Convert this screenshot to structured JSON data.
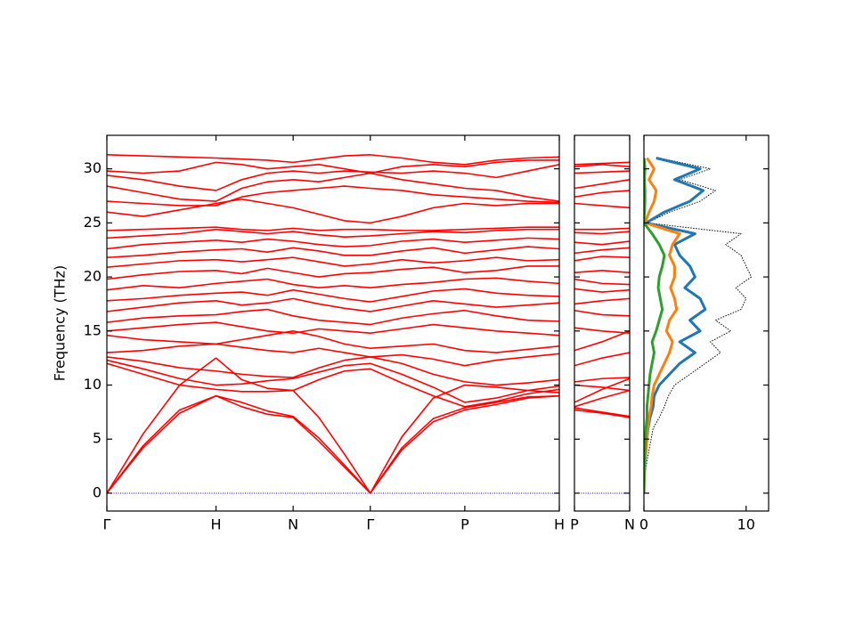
{
  "chart_data": [
    {
      "type": "line",
      "ylabel": "Frequency (THz)",
      "color": "#ff0000",
      "ytick_labels": true,
      "xlim": [
        0,
        4.146
      ],
      "ylim": [
        -1.65,
        33.1
      ],
      "xticks": [
        {
          "value": 0,
          "label": "Γ"
        },
        {
          "value": 1,
          "label": "H"
        },
        {
          "value": 1.707,
          "label": "N"
        },
        {
          "value": 2.414,
          "label": "Γ"
        },
        {
          "value": 3.28,
          "label": "P"
        },
        {
          "value": 4.146,
          "label": "H"
        }
      ],
      "yticks": [
        0,
        5,
        10,
        15,
        20,
        25,
        30
      ],
      "hline": {
        "value": 0,
        "color": "#0000ff"
      },
      "x": [
        0,
        0.333,
        0.667,
        1,
        1.236,
        1.471,
        1.707,
        1.943,
        2.178,
        2.414,
        2.703,
        2.991,
        3.28,
        3.569,
        3.857,
        4.146
      ],
      "series": [
        {
          "values": [
            0,
            4.2,
            7.4,
            9.0,
            8.0,
            7.3,
            7.0,
            4.8,
            2.4,
            0,
            4.0,
            6.6,
            7.7,
            8.2,
            8.8,
            9.0
          ]
        },
        {
          "values": [
            0,
            4.4,
            7.7,
            9.0,
            8.4,
            7.6,
            7.1,
            5.1,
            2.6,
            0,
            4.2,
            6.9,
            7.9,
            8.4,
            8.9,
            9.0
          ]
        },
        {
          "values": [
            0,
            5.5,
            10.0,
            12.5,
            10.5,
            9.7,
            9.5,
            7.0,
            3.6,
            0,
            5.2,
            8.8,
            10.0,
            9.8,
            9.5,
            9.3
          ]
        },
        {
          "values": [
            12.0,
            11.0,
            10.0,
            9.6,
            9.4,
            9.4,
            9.5,
            10.5,
            11.3,
            11.5,
            10.2,
            9.0,
            8.0,
            8.5,
            9.2,
            9.6
          ]
        },
        {
          "values": [
            12.3,
            11.5,
            10.6,
            10.0,
            10.1,
            10.4,
            10.6,
            11.2,
            11.8,
            12.0,
            11.0,
            9.8,
            8.4,
            8.8,
            9.5,
            9.9
          ]
        },
        {
          "values": [
            12.6,
            12.2,
            11.6,
            11.3,
            11.0,
            10.8,
            10.7,
            11.6,
            12.3,
            12.6,
            12.0,
            11.0,
            10.3,
            10.0,
            10.2,
            10.5
          ]
        },
        {
          "values": [
            13.0,
            13.2,
            13.6,
            13.8,
            13.5,
            13.2,
            13.0,
            13.4,
            13.0,
            12.6,
            12.8,
            12.4,
            11.8,
            12.3,
            12.6,
            12.9
          ]
        },
        {
          "values": [
            14.6,
            14.2,
            14.0,
            13.8,
            14.2,
            14.6,
            15.0,
            14.5,
            13.8,
            13.4,
            13.6,
            13.8,
            13.2,
            13.0,
            13.3,
            13.6
          ]
        },
        {
          "values": [
            15.0,
            15.3,
            15.6,
            15.8,
            15.4,
            15.0,
            14.8,
            15.2,
            15.0,
            14.8,
            15.2,
            15.6,
            15.3,
            15.0,
            14.8,
            14.6
          ]
        },
        {
          "values": [
            15.8,
            16.2,
            16.4,
            16.5,
            16.8,
            17.0,
            16.4,
            16.0,
            15.8,
            15.6,
            16.2,
            16.6,
            16.9,
            16.4,
            16.0,
            15.9
          ]
        },
        {
          "values": [
            16.8,
            17.2,
            17.6,
            17.8,
            17.4,
            17.6,
            18.0,
            17.5,
            17.1,
            16.8,
            17.3,
            17.8,
            17.5,
            17.2,
            17.4,
            17.6
          ]
        },
        {
          "values": [
            17.8,
            18.0,
            18.3,
            18.5,
            18.6,
            18.3,
            18.8,
            18.4,
            18.0,
            17.7,
            18.2,
            18.7,
            18.9,
            18.5,
            18.3,
            18.2
          ]
        },
        {
          "values": [
            18.8,
            19.2,
            19.0,
            19.4,
            19.6,
            19.8,
            19.3,
            19.0,
            19.2,
            19.0,
            19.3,
            19.5,
            19.8,
            19.9,
            19.6,
            19.4
          ]
        },
        {
          "values": [
            19.8,
            20.2,
            20.5,
            20.6,
            20.3,
            20.8,
            20.4,
            20.0,
            20.3,
            20.4,
            20.7,
            20.9,
            20.4,
            20.6,
            21.0,
            21.0
          ]
        },
        {
          "values": [
            20.9,
            21.2,
            21.5,
            21.6,
            21.4,
            21.6,
            21.8,
            21.4,
            21.0,
            21.2,
            21.6,
            21.3,
            21.5,
            21.8,
            21.5,
            21.6
          ]
        },
        {
          "values": [
            21.8,
            22.0,
            22.3,
            22.5,
            22.6,
            22.3,
            22.7,
            22.4,
            22.0,
            22.0,
            22.4,
            22.7,
            22.2,
            22.5,
            22.8,
            22.6
          ]
        },
        {
          "values": [
            22.6,
            23.0,
            23.2,
            23.4,
            23.2,
            23.5,
            23.3,
            23.0,
            22.8,
            22.9,
            23.3,
            23.5,
            23.2,
            23.4,
            23.6,
            23.5
          ]
        },
        {
          "values": [
            23.6,
            23.8,
            24.0,
            24.4,
            24.2,
            24.0,
            24.2,
            23.9,
            23.7,
            23.8,
            24.0,
            24.2,
            24.1,
            24.3,
            24.4,
            24.4
          ]
        },
        {
          "values": [
            24.3,
            24.4,
            24.5,
            24.6,
            24.4,
            24.3,
            24.5,
            24.3,
            24.4,
            24.4,
            24.3,
            24.3,
            24.4,
            24.5,
            24.6,
            24.6
          ]
        },
        {
          "values": [
            26.0,
            25.6,
            26.2,
            26.8,
            27.2,
            26.8,
            26.4,
            25.8,
            25.2,
            25.0,
            25.6,
            26.4,
            26.8,
            26.6,
            26.8,
            26.8
          ]
        },
        {
          "values": [
            27.0,
            26.8,
            26.6,
            26.6,
            27.4,
            27.8,
            28.0,
            28.2,
            28.4,
            28.2,
            28.0,
            27.6,
            27.4,
            27.2,
            27.0,
            26.9
          ]
        },
        {
          "values": [
            28.4,
            27.8,
            27.2,
            27.0,
            28.2,
            28.8,
            29.0,
            28.8,
            29.2,
            29.6,
            29.0,
            28.6,
            28.2,
            28.0,
            27.4,
            27.0
          ]
        },
        {
          "values": [
            29.4,
            29.0,
            28.4,
            28.0,
            29.0,
            29.6,
            29.8,
            29.6,
            29.8,
            29.7,
            29.6,
            29.8,
            29.6,
            29.2,
            29.8,
            30.4
          ]
        },
        {
          "values": [
            29.8,
            29.6,
            29.8,
            30.6,
            30.4,
            30.0,
            30.2,
            30.4,
            30.0,
            29.6,
            30.2,
            30.4,
            30.2,
            30.6,
            30.8,
            30.8
          ]
        },
        {
          "values": [
            31.3,
            31.2,
            31.1,
            31.0,
            30.9,
            30.8,
            30.6,
            30.9,
            31.2,
            31.3,
            31.0,
            30.6,
            30.4,
            30.8,
            31.0,
            31.1
          ]
        }
      ]
    },
    {
      "type": "line",
      "color": "#ff0000",
      "ytick_labels": false,
      "xlim": [
        0,
        0.5
      ],
      "ylim": [
        -1.65,
        33.1
      ],
      "xticks": [
        {
          "value": 0,
          "label": "P"
        },
        {
          "value": 0.5,
          "label": "N"
        }
      ],
      "yticks": [
        0,
        5,
        10,
        15,
        20,
        25,
        30
      ],
      "hline": {
        "value": 0,
        "color": "#0000ff"
      },
      "x": [
        0,
        0.25,
        0.5
      ],
      "series": [
        {
          "values": [
            7.7,
            7.4,
            7.0
          ]
        },
        {
          "values": [
            7.9,
            7.5,
            7.1
          ]
        },
        {
          "values": [
            10.0,
            9.8,
            9.5
          ]
        },
        {
          "values": [
            8.0,
            8.8,
            9.5
          ]
        },
        {
          "values": [
            8.4,
            9.6,
            10.6
          ]
        },
        {
          "values": [
            10.3,
            10.6,
            10.7
          ]
        },
        {
          "values": [
            11.8,
            12.5,
            13.0
          ]
        },
        {
          "values": [
            13.2,
            14.0,
            15.0
          ]
        },
        {
          "values": [
            15.3,
            15.0,
            14.8
          ]
        },
        {
          "values": [
            16.9,
            16.5,
            16.4
          ]
        },
        {
          "values": [
            17.5,
            17.8,
            18.0
          ]
        },
        {
          "values": [
            18.9,
            18.6,
            18.8
          ]
        },
        {
          "values": [
            19.8,
            19.4,
            19.3
          ]
        },
        {
          "values": [
            20.4,
            20.6,
            20.4
          ]
        },
        {
          "values": [
            21.5,
            21.9,
            21.8
          ]
        },
        {
          "values": [
            22.2,
            22.5,
            22.7
          ]
        },
        {
          "values": [
            23.2,
            23.0,
            23.3
          ]
        },
        {
          "values": [
            24.1,
            24.0,
            24.2
          ]
        },
        {
          "values": [
            24.4,
            24.4,
            24.5
          ]
        },
        {
          "values": [
            26.8,
            26.6,
            26.4
          ]
        },
        {
          "values": [
            27.4,
            27.8,
            28.0
          ]
        },
        {
          "values": [
            28.2,
            28.6,
            29.0
          ]
        },
        {
          "values": [
            29.6,
            29.7,
            29.8
          ]
        },
        {
          "values": [
            30.2,
            30.4,
            30.2
          ]
        },
        {
          "values": [
            30.4,
            30.5,
            30.6
          ]
        }
      ]
    },
    {
      "type": "line",
      "orientation": "horizontal",
      "ytick_labels": false,
      "xlim": [
        0,
        12.2
      ],
      "ylim": [
        -1.65,
        33.1
      ],
      "xticks": [
        0,
        10
      ],
      "yticks": [
        0,
        5,
        10,
        15,
        20,
        25,
        30
      ],
      "y": [
        0,
        1,
        2,
        3,
        4,
        5,
        6,
        7,
        8,
        9,
        10,
        11,
        12,
        13,
        14,
        15,
        16,
        17,
        18,
        19,
        20,
        21,
        22,
        23,
        24,
        25,
        26,
        27,
        28,
        29,
        30,
        31
      ],
      "series": [
        {
          "color": "#000000",
          "style": "dotted",
          "linewidth": 1,
          "values": [
            0,
            0.05,
            0.15,
            0.3,
            0.5,
            0.7,
            0.9,
            1.5,
            2.0,
            2.4,
            3.0,
            4.5,
            6.0,
            7.5,
            6.5,
            8.5,
            7.0,
            9.5,
            10.0,
            9.0,
            10.5,
            10.0,
            9.5,
            8.0,
            9.5,
            0.3,
            2.5,
            5.5,
            7.0,
            3.5,
            6.5,
            1.5
          ]
        },
        {
          "color": "#1f77b4",
          "style": "solid",
          "linewidth": 3,
          "values": [
            0,
            0,
            0.05,
            0.1,
            0.2,
            0.3,
            0.4,
            0.6,
            0.9,
            1.0,
            1.5,
            2.5,
            3.5,
            5.0,
            3.5,
            5.5,
            4.5,
            6.0,
            5.5,
            4.0,
            5.0,
            4.5,
            3.5,
            3.0,
            5.0,
            0.2,
            2.0,
            4.5,
            5.8,
            3.0,
            5.5,
            1.2
          ]
        },
        {
          "color": "#ff7f0e",
          "style": "solid",
          "linewidth": 3,
          "values": [
            0,
            0.03,
            0.07,
            0.12,
            0.2,
            0.3,
            0.35,
            0.5,
            0.7,
            0.8,
            1.0,
            1.5,
            2.0,
            2.5,
            2.8,
            2.2,
            2.5,
            3.2,
            3.0,
            2.6,
            3.0,
            3.0,
            2.5,
            2.8,
            3.5,
            0.1,
            0.5,
            1.0,
            1.2,
            0.5,
            1.0,
            0.3
          ]
        },
        {
          "color": "#2ca02c",
          "style": "solid",
          "linewidth": 3,
          "values": [
            0,
            0.02,
            0.03,
            0.05,
            0.1,
            0.15,
            0.2,
            0.3,
            0.3,
            0.4,
            0.5,
            0.6,
            0.8,
            1.0,
            0.8,
            1.2,
            1.5,
            1.8,
            1.6,
            1.4,
            1.5,
            1.8,
            2.0,
            1.5,
            0.8,
            0,
            0.05,
            0.1,
            0.1,
            0.05,
            0.1,
            0.02
          ]
        }
      ]
    }
  ]
}
